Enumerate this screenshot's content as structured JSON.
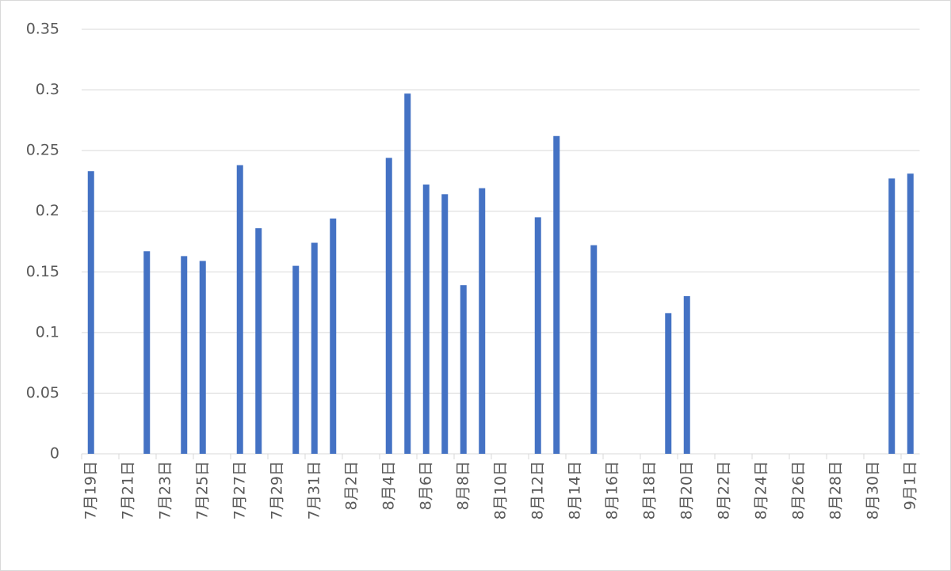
{
  "chart_data": {
    "type": "bar",
    "color": "#4472c4",
    "categories": [
      "7月19日",
      null,
      "7月21日",
      null,
      "7月23日",
      null,
      "7月25日",
      null,
      "7月27日",
      null,
      "7月29日",
      null,
      "7月31日",
      null,
      "8月2日",
      null,
      "8月4日",
      null,
      "8月6日",
      null,
      "8月8日",
      null,
      "8月10日",
      null,
      "8月12日",
      null,
      "8月14日",
      null,
      "8月16日",
      null,
      "8月18日",
      null,
      "8月20日",
      null,
      "8月22日",
      null,
      "8月24日",
      null,
      "8月26日",
      null,
      "8月28日",
      null,
      "8月30日",
      null,
      "9月1日"
    ],
    "values": [
      0.233,
      null,
      null,
      0.167,
      null,
      0.163,
      0.159,
      null,
      0.238,
      0.186,
      null,
      0.155,
      0.174,
      0.194,
      null,
      null,
      0.244,
      0.297,
      0.222,
      0.214,
      0.139,
      0.219,
      null,
      null,
      0.195,
      0.262,
      null,
      0.172,
      null,
      null,
      null,
      0.116,
      0.13,
      null,
      null,
      null,
      null,
      null,
      null,
      null,
      null,
      null,
      null,
      0.227,
      0.231
    ],
    "ylim": [
      0,
      0.35
    ],
    "yticks": [
      0,
      0.05,
      0.1,
      0.15,
      0.2,
      0.25,
      0.3,
      0.35
    ],
    "grid": true
  }
}
